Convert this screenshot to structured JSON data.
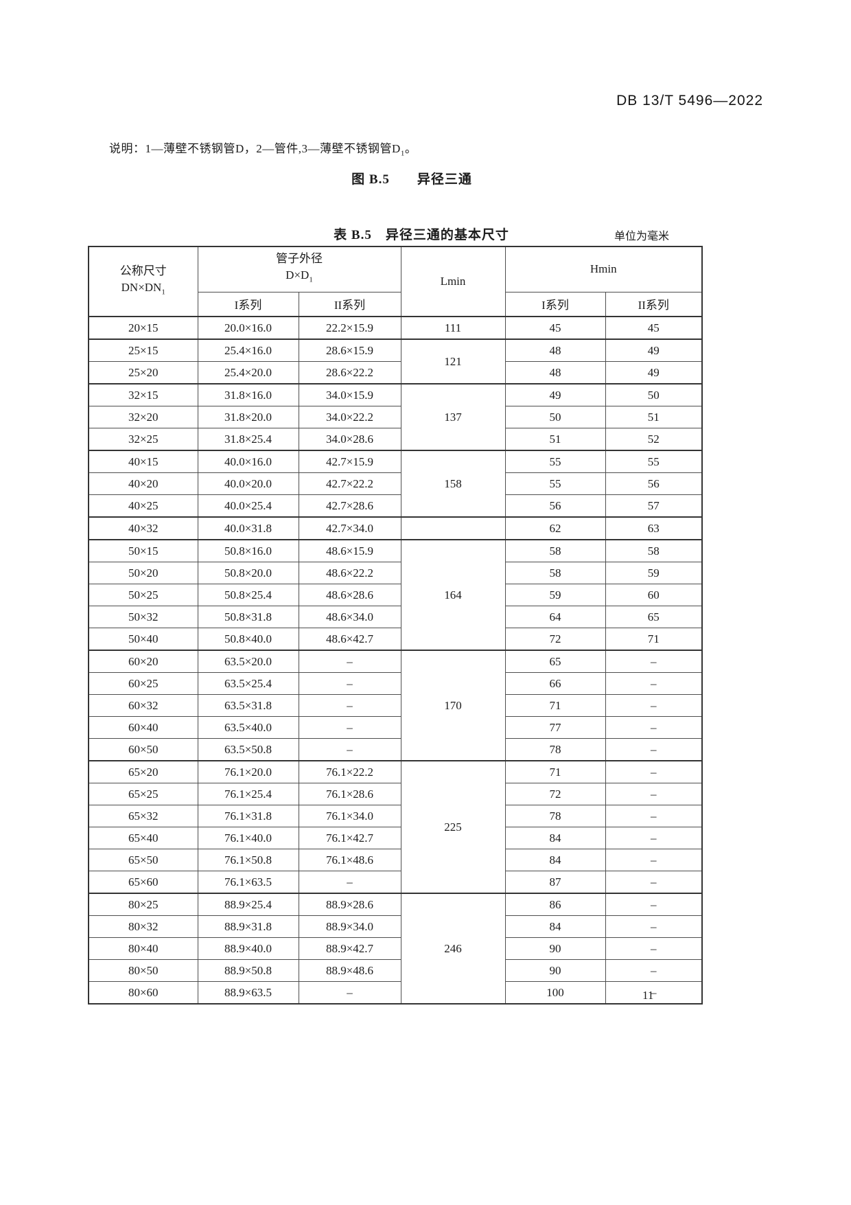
{
  "page": {
    "doc_code": "DB 13/T 5496—2022",
    "note_text": "说明：1—薄壁不锈钢管D，2—管件,3—薄壁不锈钢管D",
    "note_sub": "1",
    "note_end": "。",
    "figure_caption": "图 B.5　　异径三通",
    "table_caption": "表 B.5　异径三通的基本尺寸",
    "unit_note": "单位为毫米",
    "page_number": "11"
  },
  "table": {
    "header": {
      "nominal_title": "公称尺寸",
      "nominal_sub_main": "DN×DN",
      "nominal_sub_index": "1",
      "od_title": "管子外径",
      "od_sub_main": "D×D",
      "od_sub_index": "1",
      "lmin": "Lmin",
      "hmin": "Hmin",
      "series1": "I系列",
      "series2": "II系列"
    },
    "rows": [
      {
        "dn": "20×15",
        "od1": "20.0×16.0",
        "od2": "22.2×15.9",
        "lmin": "111",
        "lspan": 1,
        "h1": "45",
        "h2": "45",
        "group_start": false
      },
      {
        "dn": "25×15",
        "od1": "25.4×16.0",
        "od2": "28.6×15.9",
        "lmin": "121",
        "lspan": 2,
        "h1": "48",
        "h2": "49",
        "group_start": true
      },
      {
        "dn": "25×20",
        "od1": "25.4×20.0",
        "od2": "28.6×22.2",
        "h1": "48",
        "h2": "49",
        "group_start": false
      },
      {
        "dn": "32×15",
        "od1": "31.8×16.0",
        "od2": "34.0×15.9",
        "lmin": "137",
        "lspan": 3,
        "h1": "49",
        "h2": "50",
        "group_start": true
      },
      {
        "dn": "32×20",
        "od1": "31.8×20.0",
        "od2": "34.0×22.2",
        "h1": "50",
        "h2": "51",
        "group_start": false
      },
      {
        "dn": "32×25",
        "od1": "31.8×25.4",
        "od2": "34.0×28.6",
        "h1": "51",
        "h2": "52",
        "group_start": false
      },
      {
        "dn": "40×15",
        "od1": "40.0×16.0",
        "od2": "42.7×15.9",
        "lmin": "158",
        "lspan": 3,
        "h1": "55",
        "h2": "55",
        "group_start": true
      },
      {
        "dn": "40×20",
        "od1": "40.0×20.0",
        "od2": "42.7×22.2",
        "h1": "55",
        "h2": "56",
        "group_start": false
      },
      {
        "dn": "40×25",
        "od1": "40.0×25.4",
        "od2": "42.7×28.6",
        "h1": "56",
        "h2": "57",
        "group_start": false
      },
      {
        "dn": "40×32",
        "od1": "40.0×31.8",
        "od2": "42.7×34.0",
        "lmin": "",
        "lspan": 1,
        "h1": "62",
        "h2": "63",
        "group_start": true
      },
      {
        "dn": "50×15",
        "od1": "50.8×16.0",
        "od2": "48.6×15.9",
        "lmin": "164",
        "lspan": 5,
        "h1": "58",
        "h2": "58",
        "group_start": true
      },
      {
        "dn": "50×20",
        "od1": "50.8×20.0",
        "od2": "48.6×22.2",
        "h1": "58",
        "h2": "59",
        "group_start": false
      },
      {
        "dn": "50×25",
        "od1": "50.8×25.4",
        "od2": "48.6×28.6",
        "h1": "59",
        "h2": "60",
        "group_start": false
      },
      {
        "dn": "50×32",
        "od1": "50.8×31.8",
        "od2": "48.6×34.0",
        "h1": "64",
        "h2": "65",
        "group_start": false
      },
      {
        "dn": "50×40",
        "od1": "50.8×40.0",
        "od2": "48.6×42.7",
        "h1": "72",
        "h2": "71",
        "group_start": false
      },
      {
        "dn": "60×20",
        "od1": "63.5×20.0",
        "od2": "–",
        "lmin": "170",
        "lspan": 5,
        "h1": "65",
        "h2": "–",
        "group_start": true
      },
      {
        "dn": "60×25",
        "od1": "63.5×25.4",
        "od2": "–",
        "h1": "66",
        "h2": "–",
        "group_start": false
      },
      {
        "dn": "60×32",
        "od1": "63.5×31.8",
        "od2": "–",
        "h1": "71",
        "h2": "–",
        "group_start": false
      },
      {
        "dn": "60×40",
        "od1": "63.5×40.0",
        "od2": "–",
        "h1": "77",
        "h2": "–",
        "group_start": false
      },
      {
        "dn": "60×50",
        "od1": "63.5×50.8",
        "od2": "–",
        "h1": "78",
        "h2": "–",
        "group_start": false
      },
      {
        "dn": "65×20",
        "od1": "76.1×20.0",
        "od2": "76.1×22.2",
        "lmin": "225",
        "lspan": 6,
        "h1": "71",
        "h2": "–",
        "group_start": true
      },
      {
        "dn": "65×25",
        "od1": "76.1×25.4",
        "od2": "76.1×28.6",
        "h1": "72",
        "h2": "–",
        "group_start": false
      },
      {
        "dn": "65×32",
        "od1": "76.1×31.8",
        "od2": "76.1×34.0",
        "h1": "78",
        "h2": "–",
        "group_start": false
      },
      {
        "dn": "65×40",
        "od1": "76.1×40.0",
        "od2": "76.1×42.7",
        "h1": "84",
        "h2": "–",
        "group_start": false
      },
      {
        "dn": "65×50",
        "od1": "76.1×50.8",
        "od2": "76.1×48.6",
        "h1": "84",
        "h2": "–",
        "group_start": false
      },
      {
        "dn": "65×60",
        "od1": "76.1×63.5",
        "od2": "–",
        "h1": "87",
        "h2": "–",
        "group_start": false
      },
      {
        "dn": "80×25",
        "od1": "88.9×25.4",
        "od2": "88.9×28.6",
        "lmin": "246",
        "lspan": 5,
        "h1": "86",
        "h2": "–",
        "group_start": true
      },
      {
        "dn": "80×32",
        "od1": "88.9×31.8",
        "od2": "88.9×34.0",
        "h1": "84",
        "h2": "–",
        "group_start": false
      },
      {
        "dn": "80×40",
        "od1": "88.9×40.0",
        "od2": "88.9×42.7",
        "h1": "90",
        "h2": "–",
        "group_start": false
      },
      {
        "dn": "80×50",
        "od1": "88.9×50.8",
        "od2": "88.9×48.6",
        "h1": "90",
        "h2": "–",
        "group_start": false
      },
      {
        "dn": "80×60",
        "od1": "88.9×63.5",
        "od2": "–",
        "h1": "100",
        "h2": "–",
        "group_start": false
      }
    ]
  }
}
